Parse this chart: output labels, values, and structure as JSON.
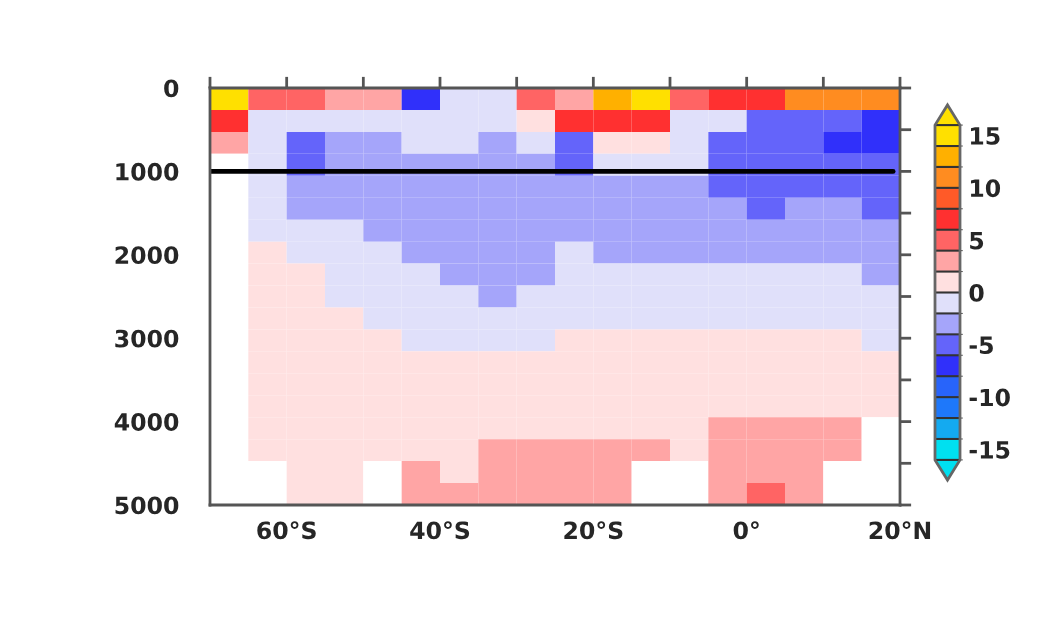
{
  "chart_data": {
    "type": "heatmap",
    "xlim": [
      -70,
      20
    ],
    "ylim": [
      5000,
      0
    ],
    "xticks": [
      {
        "value": -70,
        "label": null
      },
      {
        "value": -60,
        "label": "60°S"
      },
      {
        "value": -50,
        "label": null
      },
      {
        "value": -40,
        "label": "40°S"
      },
      {
        "value": -30,
        "label": null
      },
      {
        "value": -20,
        "label": "20°S"
      },
      {
        "value": -10,
        "label": null
      },
      {
        "value": 0,
        "label": "0°"
      },
      {
        "value": 10,
        "label": null
      },
      {
        "value": 20,
        "label": "20°N"
      }
    ],
    "yticks": [
      0,
      {
        "value": 500,
        "label": null
      },
      1000,
      {
        "value": 1500,
        "label": null
      },
      2000,
      {
        "value": 2500,
        "label": null
      },
      3000,
      {
        "value": 3500,
        "label": null
      },
      4000,
      {
        "value": 4500,
        "label": null
      },
      5000
    ],
    "clim": [
      -16,
      16
    ],
    "cticks": [
      -15,
      -10,
      -5,
      0,
      5,
      10,
      15
    ],
    "colors": [
      "#00e0f0",
      "#14aaf0",
      "#1e78fa",
      "#2864fa",
      "#3030fa",
      "#6464fa",
      "#a5a5fa",
      "#e0e0fa",
      "#ffe0e0",
      "#ffa5a5",
      "#ff6464",
      "#ff3030",
      "#ff5a28",
      "#ff8c20",
      "#ffb000",
      "#ffe000"
    ],
    "ref_lines": [
      {
        "axis": "y",
        "value": 1000,
        "color": "#000000"
      }
    ],
    "cells": [
      [
        15,
        5,
        5,
        3,
        3,
        -7,
        -1,
        -1,
        5,
        3,
        13,
        15,
        5,
        7,
        7,
        11,
        11,
        11
      ],
      [
        7,
        -1,
        -1,
        -1,
        -1,
        -1,
        -1,
        -1,
        1,
        7,
        7,
        7,
        -1,
        -1,
        -5,
        -5,
        -5,
        -7
      ],
      [
        3,
        -1,
        -5,
        -3,
        -3,
        -1,
        -1,
        -3,
        -1,
        -5,
        1,
        1,
        -1,
        -5,
        -5,
        -5,
        -7,
        -7
      ],
      [
        null,
        -1,
        -5,
        -3,
        -3,
        -3,
        -3,
        -3,
        -3,
        -5,
        -1,
        -1,
        -1,
        -5,
        -5,
        -5,
        -5,
        -5
      ],
      [
        null,
        -1,
        -3,
        -3,
        -3,
        -3,
        -3,
        -3,
        -3,
        -3,
        -3,
        -3,
        -3,
        -5,
        -5,
        -5,
        -5,
        -5
      ],
      [
        null,
        -1,
        -3,
        -3,
        -3,
        -3,
        -3,
        -3,
        -3,
        -3,
        -3,
        -3,
        -3,
        -3,
        -5,
        -3,
        -3,
        -5
      ],
      [
        null,
        -1,
        -1,
        -1,
        -3,
        -3,
        -3,
        -3,
        -3,
        -3,
        -3,
        -3,
        -3,
        -3,
        -3,
        -3,
        -3,
        -3
      ],
      [
        null,
        1,
        -1,
        -1,
        -1,
        -3,
        -3,
        -3,
        -3,
        -1,
        -3,
        -3,
        -3,
        -3,
        -3,
        -3,
        -3,
        -3
      ],
      [
        null,
        1,
        1,
        -1,
        -1,
        -1,
        -3,
        -3,
        -3,
        -1,
        -1,
        -1,
        -1,
        -1,
        -1,
        -1,
        -1,
        -3
      ],
      [
        null,
        1,
        1,
        -1,
        -1,
        -1,
        -1,
        -3,
        -1,
        -1,
        -1,
        -1,
        -1,
        -1,
        -1,
        -1,
        -1,
        -1
      ],
      [
        null,
        1,
        1,
        1,
        -1,
        -1,
        -1,
        -1,
        -1,
        -1,
        -1,
        -1,
        -1,
        -1,
        -1,
        -1,
        -1,
        -1
      ],
      [
        null,
        1,
        1,
        1,
        1,
        -1,
        -1,
        -1,
        -1,
        1,
        1,
        1,
        1,
        1,
        1,
        1,
        1,
        -1
      ],
      [
        null,
        1,
        1,
        1,
        1,
        1,
        1,
        1,
        1,
        1,
        1,
        1,
        1,
        1,
        1,
        1,
        1,
        1
      ],
      [
        null,
        1,
        1,
        1,
        1,
        1,
        1,
        1,
        1,
        1,
        1,
        1,
        1,
        1,
        1,
        1,
        1,
        1
      ],
      [
        null,
        1,
        1,
        1,
        1,
        1,
        1,
        1,
        1,
        1,
        1,
        1,
        1,
        1,
        1,
        1,
        1,
        1
      ],
      [
        null,
        1,
        1,
        1,
        1,
        1,
        1,
        1,
        1,
        1,
        1,
        1,
        1,
        3,
        3,
        3,
        3,
        null
      ],
      [
        null,
        1,
        1,
        1,
        1,
        1,
        1,
        3,
        3,
        3,
        3,
        3,
        1,
        3,
        3,
        3,
        3,
        null
      ],
      [
        null,
        null,
        1,
        1,
        null,
        3,
        1,
        3,
        3,
        3,
        3,
        null,
        null,
        3,
        3,
        3,
        null,
        null
      ],
      [
        null,
        null,
        1,
        1,
        null,
        3,
        3,
        3,
        3,
        3,
        3,
        null,
        null,
        3,
        5,
        3,
        null,
        null
      ]
    ]
  }
}
